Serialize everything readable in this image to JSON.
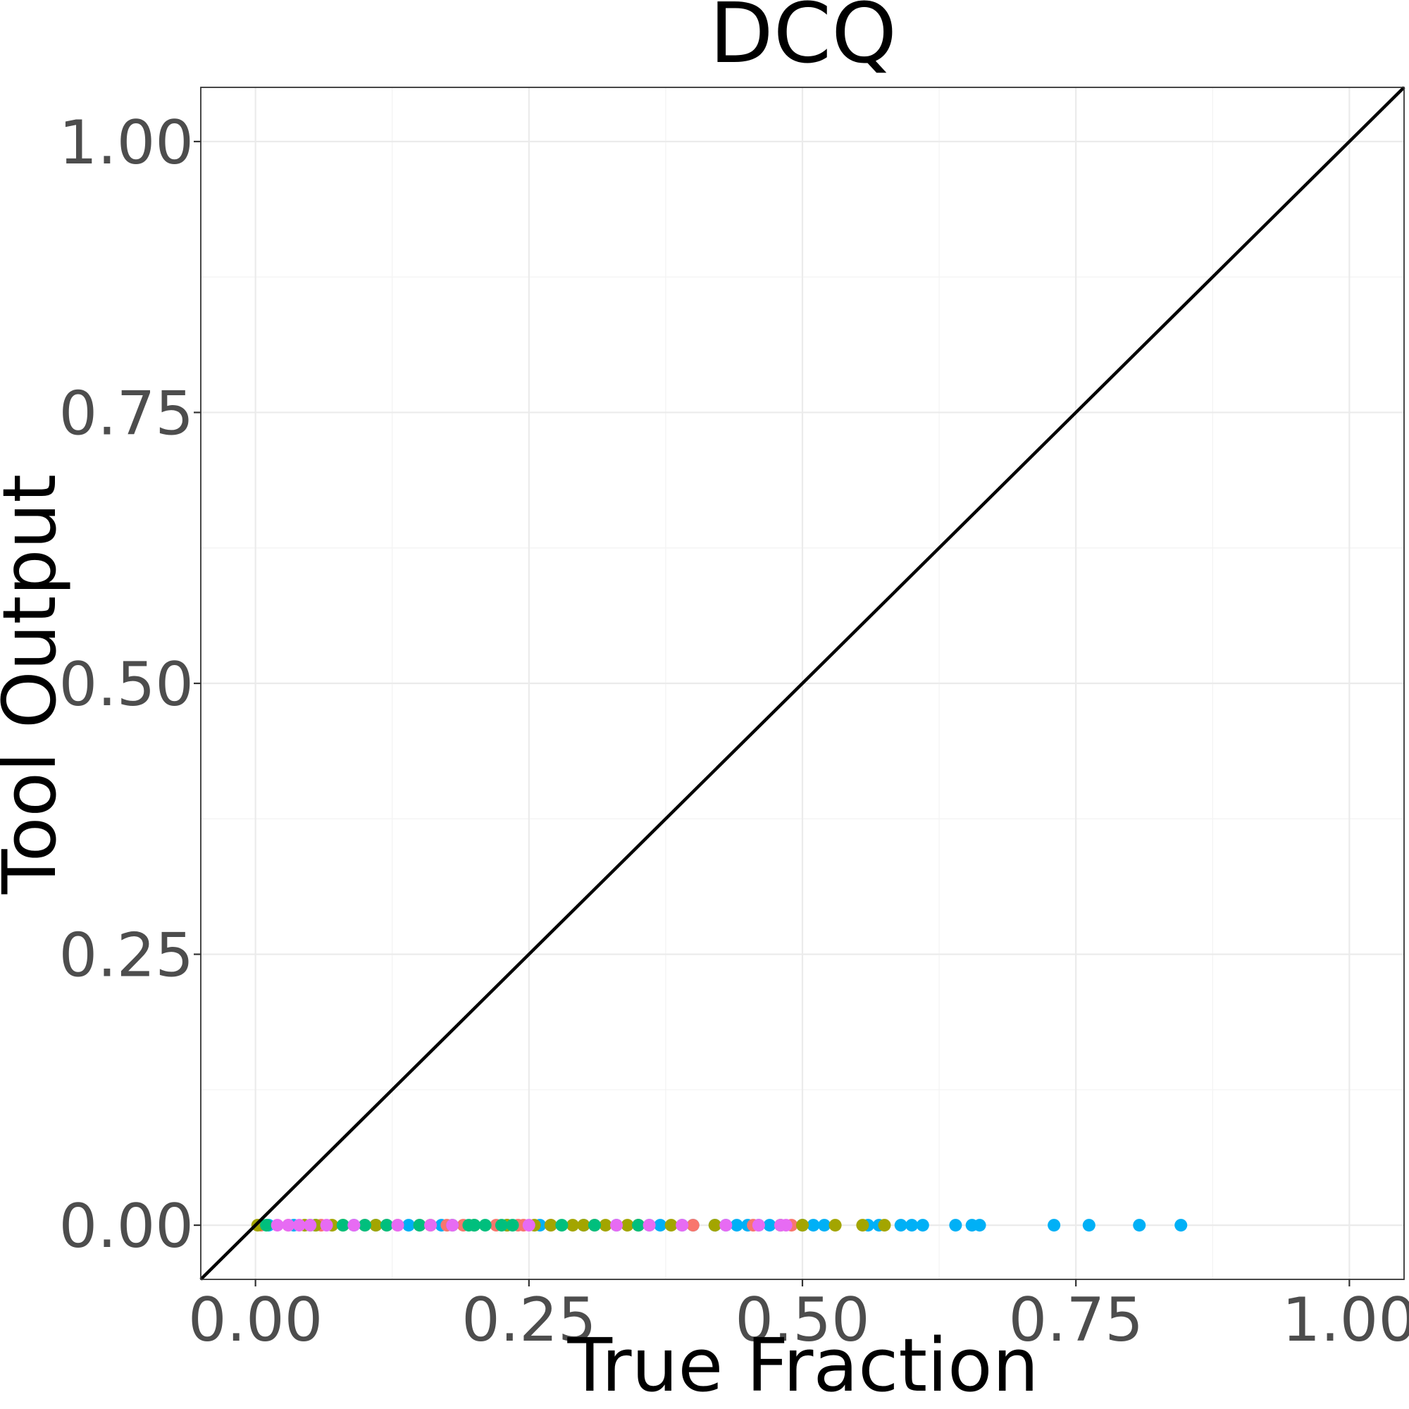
{
  "chart_data": {
    "type": "scatter",
    "title": "DCQ",
    "xlabel": "True Fraction",
    "ylabel": "Tool Output",
    "xlim": [
      -0.05,
      1.05
    ],
    "ylim": [
      -0.05,
      1.05
    ],
    "x_ticks": [
      "0.00",
      "0.25",
      "0.50",
      "0.75",
      "1.00"
    ],
    "y_ticks": [
      "0.00",
      "0.25",
      "0.50",
      "0.75",
      "1.00"
    ],
    "grid": true,
    "legend": "none",
    "reference_line": {
      "type": "identity",
      "from": [
        -0.05,
        -0.05
      ],
      "to": [
        1.05,
        1.05
      ],
      "color": "#000000"
    },
    "series": [
      {
        "color": "#00b0f6",
        "points": [
          [
            0.012,
            0
          ],
          [
            0.035,
            0
          ],
          [
            0.055,
            0
          ],
          [
            0.09,
            0
          ],
          [
            0.11,
            0
          ],
          [
            0.14,
            0
          ],
          [
            0.17,
            0
          ],
          [
            0.2,
            0
          ],
          [
            0.23,
            0
          ],
          [
            0.26,
            0
          ],
          [
            0.3,
            0
          ],
          [
            0.33,
            0
          ],
          [
            0.36,
            0
          ],
          [
            0.37,
            0
          ],
          [
            0.39,
            0
          ],
          [
            0.4,
            0
          ],
          [
            0.42,
            0
          ],
          [
            0.43,
            0
          ],
          [
            0.44,
            0
          ],
          [
            0.45,
            0
          ],
          [
            0.46,
            0
          ],
          [
            0.47,
            0
          ],
          [
            0.48,
            0
          ],
          [
            0.5,
            0
          ],
          [
            0.51,
            0
          ],
          [
            0.52,
            0
          ],
          [
            0.56,
            0
          ],
          [
            0.57,
            0
          ],
          [
            0.59,
            0
          ],
          [
            0.6,
            0
          ],
          [
            0.61,
            0
          ],
          [
            0.64,
            0
          ],
          [
            0.655,
            0
          ],
          [
            0.662,
            0
          ],
          [
            0.73,
            0
          ],
          [
            0.762,
            0
          ],
          [
            0.808,
            0
          ],
          [
            0.846,
            0
          ]
        ]
      },
      {
        "color": "#f8766d",
        "points": [
          [
            0.005,
            0
          ],
          [
            0.03,
            0
          ],
          [
            0.06,
            0
          ],
          [
            0.1,
            0
          ],
          [
            0.12,
            0
          ],
          [
            0.13,
            0
          ],
          [
            0.15,
            0
          ],
          [
            0.175,
            0
          ],
          [
            0.19,
            0
          ],
          [
            0.22,
            0
          ],
          [
            0.24,
            0
          ],
          [
            0.245,
            0
          ],
          [
            0.27,
            0
          ],
          [
            0.31,
            0
          ],
          [
            0.35,
            0
          ],
          [
            0.4,
            0
          ],
          [
            0.455,
            0
          ],
          [
            0.49,
            0
          ]
        ]
      },
      {
        "color": "#a3a500",
        "points": [
          [
            0.002,
            0
          ],
          [
            0.045,
            0
          ],
          [
            0.055,
            0
          ],
          [
            0.07,
            0
          ],
          [
            0.08,
            0
          ],
          [
            0.11,
            0
          ],
          [
            0.16,
            0
          ],
          [
            0.2,
            0
          ],
          [
            0.23,
            0
          ],
          [
            0.255,
            0
          ],
          [
            0.27,
            0
          ],
          [
            0.29,
            0
          ],
          [
            0.3,
            0
          ],
          [
            0.32,
            0
          ],
          [
            0.34,
            0
          ],
          [
            0.35,
            0
          ],
          [
            0.38,
            0
          ],
          [
            0.42,
            0
          ],
          [
            0.48,
            0
          ],
          [
            0.5,
            0
          ],
          [
            0.53,
            0
          ],
          [
            0.555,
            0
          ],
          [
            0.575,
            0
          ]
        ]
      },
      {
        "color": "#00bf7d",
        "points": [
          [
            0.01,
            0
          ],
          [
            0.05,
            0
          ],
          [
            0.08,
            0
          ],
          [
            0.1,
            0
          ],
          [
            0.12,
            0
          ],
          [
            0.15,
            0
          ],
          [
            0.18,
            0
          ],
          [
            0.195,
            0
          ],
          [
            0.2,
            0
          ],
          [
            0.21,
            0
          ],
          [
            0.225,
            0
          ],
          [
            0.235,
            0
          ],
          [
            0.28,
            0
          ],
          [
            0.31,
            0
          ],
          [
            0.35,
            0
          ]
        ]
      },
      {
        "color": "#e76bf3",
        "points": [
          [
            0.02,
            0
          ],
          [
            0.03,
            0
          ],
          [
            0.04,
            0
          ],
          [
            0.05,
            0
          ],
          [
            0.065,
            0
          ],
          [
            0.09,
            0
          ],
          [
            0.13,
            0
          ],
          [
            0.16,
            0
          ],
          [
            0.18,
            0
          ],
          [
            0.25,
            0
          ],
          [
            0.33,
            0
          ],
          [
            0.36,
            0
          ],
          [
            0.39,
            0
          ],
          [
            0.43,
            0
          ],
          [
            0.46,
            0
          ],
          [
            0.48,
            0
          ],
          [
            0.485,
            0
          ]
        ]
      }
    ]
  }
}
